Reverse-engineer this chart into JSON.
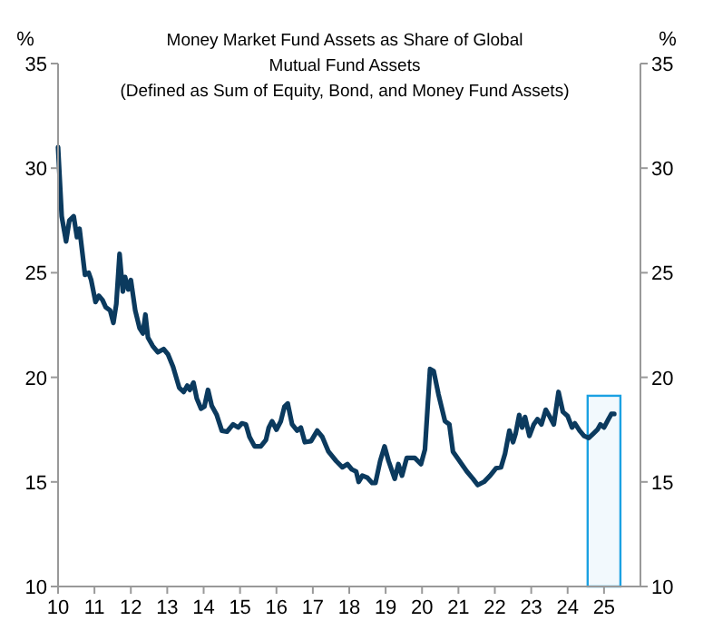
{
  "chart_data": {
    "type": "line",
    "title": "Money Market Fund Assets as Share of Global Mutual Fund Assets",
    "subtitle": "(Defined as Sum of Equity, Bond, and Money Fund Assets)",
    "ylabel": "%",
    "y2label": "%",
    "xlim": [
      2010,
      2026
    ],
    "xticks": [
      {
        "value": 2010,
        "label": "10"
      },
      {
        "value": 2011,
        "label": "11"
      },
      {
        "value": 2012,
        "label": "12"
      },
      {
        "value": 2013,
        "label": "13"
      },
      {
        "value": 2014,
        "label": "14"
      },
      {
        "value": 2015,
        "label": "15"
      },
      {
        "value": 2016,
        "label": "16"
      },
      {
        "value": 2017,
        "label": "17"
      },
      {
        "value": 2018,
        "label": "18"
      },
      {
        "value": 2019,
        "label": "19"
      },
      {
        "value": 2020,
        "label": "20"
      },
      {
        "value": 2021,
        "label": "21"
      },
      {
        "value": 2022,
        "label": "22"
      },
      {
        "value": 2023,
        "label": "23"
      },
      {
        "value": 2024,
        "label": "24"
      },
      {
        "value": 2025,
        "label": "25"
      }
    ],
    "ylim": [
      10,
      35
    ],
    "yticks": [
      10,
      15,
      20,
      25,
      30,
      35
    ],
    "y2lim": [
      10,
      35
    ],
    "y2ticks": [
      10,
      15,
      20,
      25,
      30,
      35
    ],
    "grid": false,
    "marker": "none",
    "line_style": "solid",
    "bands": [
      {
        "axis": "x",
        "from": 2024.55,
        "to": 2025.45,
        "color": "#1ba1e2"
      }
    ],
    "series": [
      {
        "color": "#0b3a5e",
        "x": [
          2010,
          2010.1,
          2010.22,
          2010.31,
          2010.43,
          2010.52,
          2010.59,
          2010.74,
          2010.84,
          2010.91,
          2011.03,
          2011.12,
          2011.22,
          2011.31,
          2011.43,
          2011.52,
          2011.6,
          2011.69,
          2011.78,
          2011.84,
          2011.93,
          2012,
          2012.12,
          2012.24,
          2012.33,
          2012.4,
          2012.47,
          2012.6,
          2012.74,
          2012.9,
          2013.02,
          2013.16,
          2013.33,
          2013.45,
          2013.55,
          2013.62,
          2013.72,
          2013.81,
          2013.93,
          2014.02,
          2014.12,
          2014.22,
          2014.36,
          2014.5,
          2014.64,
          2014.81,
          2014.95,
          2015.05,
          2015.16,
          2015.26,
          2015.4,
          2015.57,
          2015.71,
          2015.79,
          2015.88,
          2016,
          2016.12,
          2016.22,
          2016.31,
          2016.43,
          2016.57,
          2016.67,
          2016.78,
          2016.95,
          2017.12,
          2017.26,
          2017.43,
          2017.64,
          2017.81,
          2017.95,
          2018.07,
          2018.19,
          2018.26,
          2018.36,
          2018.5,
          2018.63,
          2018.72,
          2018.85,
          2018.97,
          2019.08,
          2019.25,
          2019.35,
          2019.45,
          2019.58,
          2019.8,
          2019.97,
          2020.08,
          2020.22,
          2020.32,
          2020.45,
          2020.63,
          2020.75,
          2020.85,
          2021.03,
          2021.23,
          2021.4,
          2021.53,
          2021.7,
          2021.87,
          2022.03,
          2022.17,
          2022.28,
          2022.4,
          2022.5,
          2022.57,
          2022.67,
          2022.75,
          2022.83,
          2022.95,
          2023.07,
          2023.17,
          2023.28,
          2023.4,
          2023.5,
          2023.62,
          2023.75,
          2023.87,
          2024,
          2024.12,
          2024.2,
          2024.33,
          2024.45,
          2024.58,
          2024.7,
          2024.82,
          2024.9,
          2025,
          2025.12,
          2025.2,
          2025.28
        ],
        "values": [
          31,
          27.7,
          26.5,
          27.5,
          27.7,
          26.7,
          27.1,
          24.9,
          25,
          24.65,
          23.6,
          23.9,
          23.7,
          23.35,
          23.2,
          22.6,
          23.5,
          25.9,
          24.1,
          24.8,
          24.2,
          24.65,
          23.2,
          22.35,
          22.1,
          23,
          21.9,
          21.5,
          21.2,
          21.35,
          21.1,
          20.5,
          19.5,
          19.3,
          19.6,
          19.4,
          19.75,
          19,
          18.5,
          18.6,
          19.4,
          18.65,
          18.2,
          17.45,
          17.4,
          17.75,
          17.6,
          17.8,
          17.75,
          17.15,
          16.7,
          16.7,
          17,
          17.6,
          17.9,
          17.5,
          17.9,
          18.6,
          18.75,
          17.75,
          17.45,
          17.6,
          16.9,
          16.95,
          17.45,
          17.15,
          16.45,
          16,
          15.7,
          15.85,
          15.6,
          15.5,
          15,
          15.3,
          15.2,
          14.95,
          14.95,
          16,
          16.7,
          16,
          15.15,
          15.85,
          15.3,
          16.15,
          16.15,
          15.85,
          16.55,
          20.4,
          20.3,
          19.2,
          17.9,
          17.75,
          16.45,
          16,
          15.5,
          15.15,
          14.85,
          15,
          15.3,
          15.65,
          15.7,
          16.35,
          17.45,
          16.9,
          17.3,
          18.2,
          17.6,
          18.1,
          17.2,
          17.75,
          18,
          17.75,
          18.45,
          18.15,
          17.75,
          19.3,
          18.35,
          18.15,
          17.6,
          17.8,
          17.45,
          17.2,
          17.1,
          17.3,
          17.5,
          17.75,
          17.6,
          18,
          18.25,
          18.25
        ]
      }
    ]
  }
}
